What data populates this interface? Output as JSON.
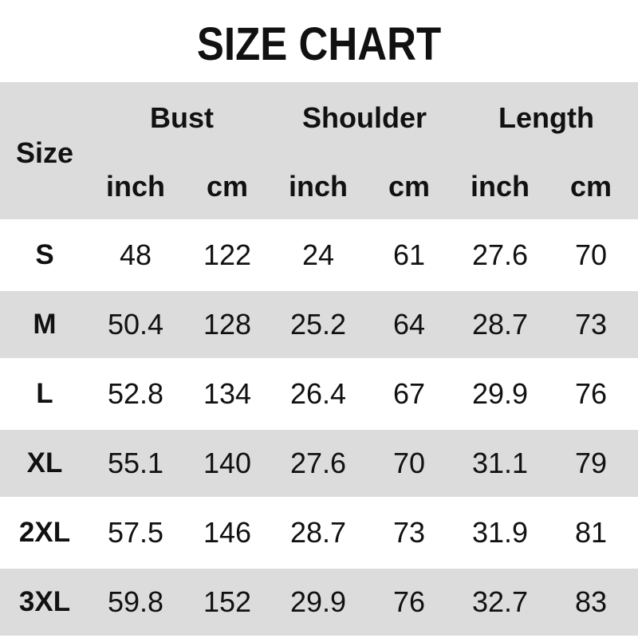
{
  "title": "SIZE CHART",
  "header": {
    "size": "Size",
    "groups": [
      "Bust",
      "Shoulder",
      "Length"
    ],
    "units": [
      "inch",
      "cm",
      "inch",
      "cm",
      "inch",
      "cm"
    ]
  },
  "colors": {
    "row_shade": "#dcdcdc",
    "text": "#111111"
  },
  "rows": [
    {
      "size": "S",
      "values": [
        "48",
        "122",
        "24",
        "61",
        "27.6",
        "70"
      ]
    },
    {
      "size": "M",
      "values": [
        "50.4",
        "128",
        "25.2",
        "64",
        "28.7",
        "73"
      ]
    },
    {
      "size": "L",
      "values": [
        "52.8",
        "134",
        "26.4",
        "67",
        "29.9",
        "76"
      ]
    },
    {
      "size": "XL",
      "values": [
        "55.1",
        "140",
        "27.6",
        "70",
        "31.1",
        "79"
      ]
    },
    {
      "size": "2XL",
      "values": [
        "57.5",
        "146",
        "28.7",
        "73",
        "31.9",
        "81"
      ]
    },
    {
      "size": "3XL",
      "values": [
        "59.8",
        "152",
        "29.9",
        "76",
        "32.7",
        "83"
      ]
    }
  ]
}
